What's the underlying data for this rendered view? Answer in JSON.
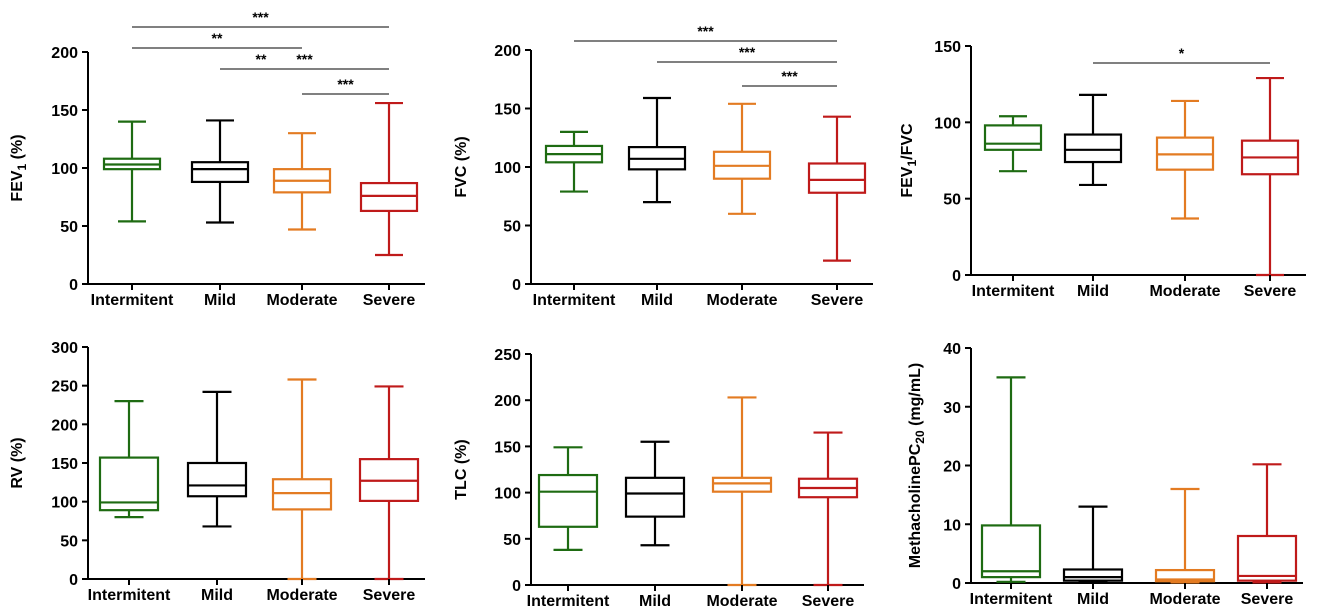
{
  "colors": {
    "Intermitent": "#1e6b12",
    "Mild": "#000000",
    "Moderate": "#e37b22",
    "Severe": "#bf1a1a"
  },
  "chart_data": [
    {
      "type": "box",
      "ylabel": "FEV1 (%)",
      "ylabel_main": "FEV",
      "ylabel_sub": "1",
      "ylabel_tail": " (%)",
      "ylim": [
        0,
        200
      ],
      "yticks": [
        "0",
        "50",
        "100",
        "150",
        "200"
      ],
      "categories": [
        "Intermitent",
        "Mild",
        "Moderate",
        "Severe"
      ],
      "boxes": [
        {
          "min": 54,
          "q1": 99,
          "median": 103,
          "q3": 108,
          "max": 140
        },
        {
          "min": 53,
          "q1": 88,
          "median": 99,
          "q3": 105,
          "max": 141
        },
        {
          "min": 47,
          "q1": 79,
          "median": 89,
          "q3": 99,
          "max": 130
        },
        {
          "min": 25,
          "q1": 63,
          "median": 76,
          "q3": 87,
          "max": 156
        }
      ],
      "significance": [
        {
          "from": 0,
          "to": 3,
          "label": "***"
        },
        {
          "from": 0,
          "to": 2,
          "label": "**"
        },
        {
          "from": 1,
          "to": 3,
          "label": "***"
        },
        {
          "from": 1,
          "to": 2,
          "label": "**"
        },
        {
          "from": 2,
          "to": 3,
          "label": "***"
        }
      ]
    },
    {
      "type": "box",
      "ylabel": "FVC (%)",
      "ylim": [
        0,
        200
      ],
      "yticks": [
        "0",
        "50",
        "100",
        "150",
        "200"
      ],
      "categories": [
        "Intermitent",
        "Mild",
        "Moderate",
        "Severe"
      ],
      "boxes": [
        {
          "min": 79,
          "q1": 104,
          "median": 111,
          "q3": 118,
          "max": 130
        },
        {
          "min": 70,
          "q1": 98,
          "median": 107,
          "q3": 117,
          "max": 159
        },
        {
          "min": 60,
          "q1": 90,
          "median": 101,
          "q3": 113,
          "max": 154
        },
        {
          "min": 20,
          "q1": 78,
          "median": 89,
          "q3": 103,
          "max": 143
        }
      ],
      "significance": [
        {
          "from": 0,
          "to": 3,
          "label": "***"
        },
        {
          "from": 1,
          "to": 3,
          "label": "***"
        },
        {
          "from": 2,
          "to": 3,
          "label": "***"
        }
      ]
    },
    {
      "type": "box",
      "ylabel": "FEV1/FVC",
      "ylabel_main": "FEV",
      "ylabel_sub": "1",
      "ylabel_tail": "/FVC",
      "ylim": [
        0,
        150
      ],
      "yticks": [
        "0",
        "50",
        "100",
        "150"
      ],
      "categories": [
        "Intermitent",
        "Mild",
        "Moderate",
        "Severe"
      ],
      "boxes": [
        {
          "min": 68,
          "q1": 82,
          "median": 86,
          "q3": 98,
          "max": 104
        },
        {
          "min": 59,
          "q1": 74,
          "median": 82,
          "q3": 92,
          "max": 118
        },
        {
          "min": 37,
          "q1": 69,
          "median": 79,
          "q3": 90,
          "max": 114
        },
        {
          "min": 0,
          "q1": 66,
          "median": 77,
          "q3": 88,
          "max": 129
        }
      ],
      "significance": [
        {
          "from": 1,
          "to": 3,
          "label": "*"
        }
      ]
    },
    {
      "type": "box",
      "ylabel": "RV (%)",
      "ylim": [
        0,
        300
      ],
      "yticks": [
        "0",
        "50",
        "100",
        "150",
        "200",
        "250",
        "300"
      ],
      "categories": [
        "Intermitent",
        "Mild",
        "Moderate",
        "Severe"
      ],
      "boxes": [
        {
          "min": 80,
          "q1": 89,
          "median": 99,
          "q3": 157,
          "max": 230
        },
        {
          "min": 68,
          "q1": 107,
          "median": 121,
          "q3": 150,
          "max": 242
        },
        {
          "min": 0,
          "q1": 90,
          "median": 111,
          "q3": 129,
          "max": 258
        },
        {
          "min": 0,
          "q1": 101,
          "median": 127,
          "q3": 155,
          "max": 249
        }
      ],
      "significance": []
    },
    {
      "type": "box",
      "ylabel": "TLC (%)",
      "ylim": [
        0,
        250
      ],
      "yticks": [
        "0",
        "50",
        "100",
        "150",
        "200",
        "250"
      ],
      "categories": [
        "Intermitent",
        "Mild",
        "Moderate",
        "Severe"
      ],
      "boxes": [
        {
          "min": 38,
          "q1": 63,
          "median": 101,
          "q3": 119,
          "max": 149
        },
        {
          "min": 43,
          "q1": 74,
          "median": 99,
          "q3": 116,
          "max": 155
        },
        {
          "min": 0,
          "q1": 101,
          "median": 110,
          "q3": 116,
          "max": 203
        },
        {
          "min": 0,
          "q1": 95,
          "median": 105,
          "q3": 115,
          "max": 165
        }
      ],
      "significance": []
    },
    {
      "type": "box",
      "ylabel": "MethacholinePC20 (mg/mL)",
      "ylabel_main": "MethacholinePC",
      "ylabel_sub": "20",
      "ylabel_tail": " (mg/mL)",
      "ylim": [
        0,
        40
      ],
      "yticks": [
        "0",
        "10",
        "20",
        "30",
        "40"
      ],
      "categories": [
        "Intermitent",
        "Mild",
        "Moderate",
        "Severe"
      ],
      "boxes": [
        {
          "min": 0.2,
          "q1": 1.0,
          "median": 2.0,
          "q3": 9.8,
          "max": 35
        },
        {
          "min": 0.1,
          "q1": 0.4,
          "median": 1.0,
          "q3": 2.3,
          "max": 13
        },
        {
          "min": 0.1,
          "q1": 0.3,
          "median": 0.6,
          "q3": 2.2,
          "max": 16
        },
        {
          "min": 0.1,
          "q1": 0.4,
          "median": 1.2,
          "q3": 8.0,
          "max": 20.2
        }
      ],
      "significance": []
    }
  ]
}
